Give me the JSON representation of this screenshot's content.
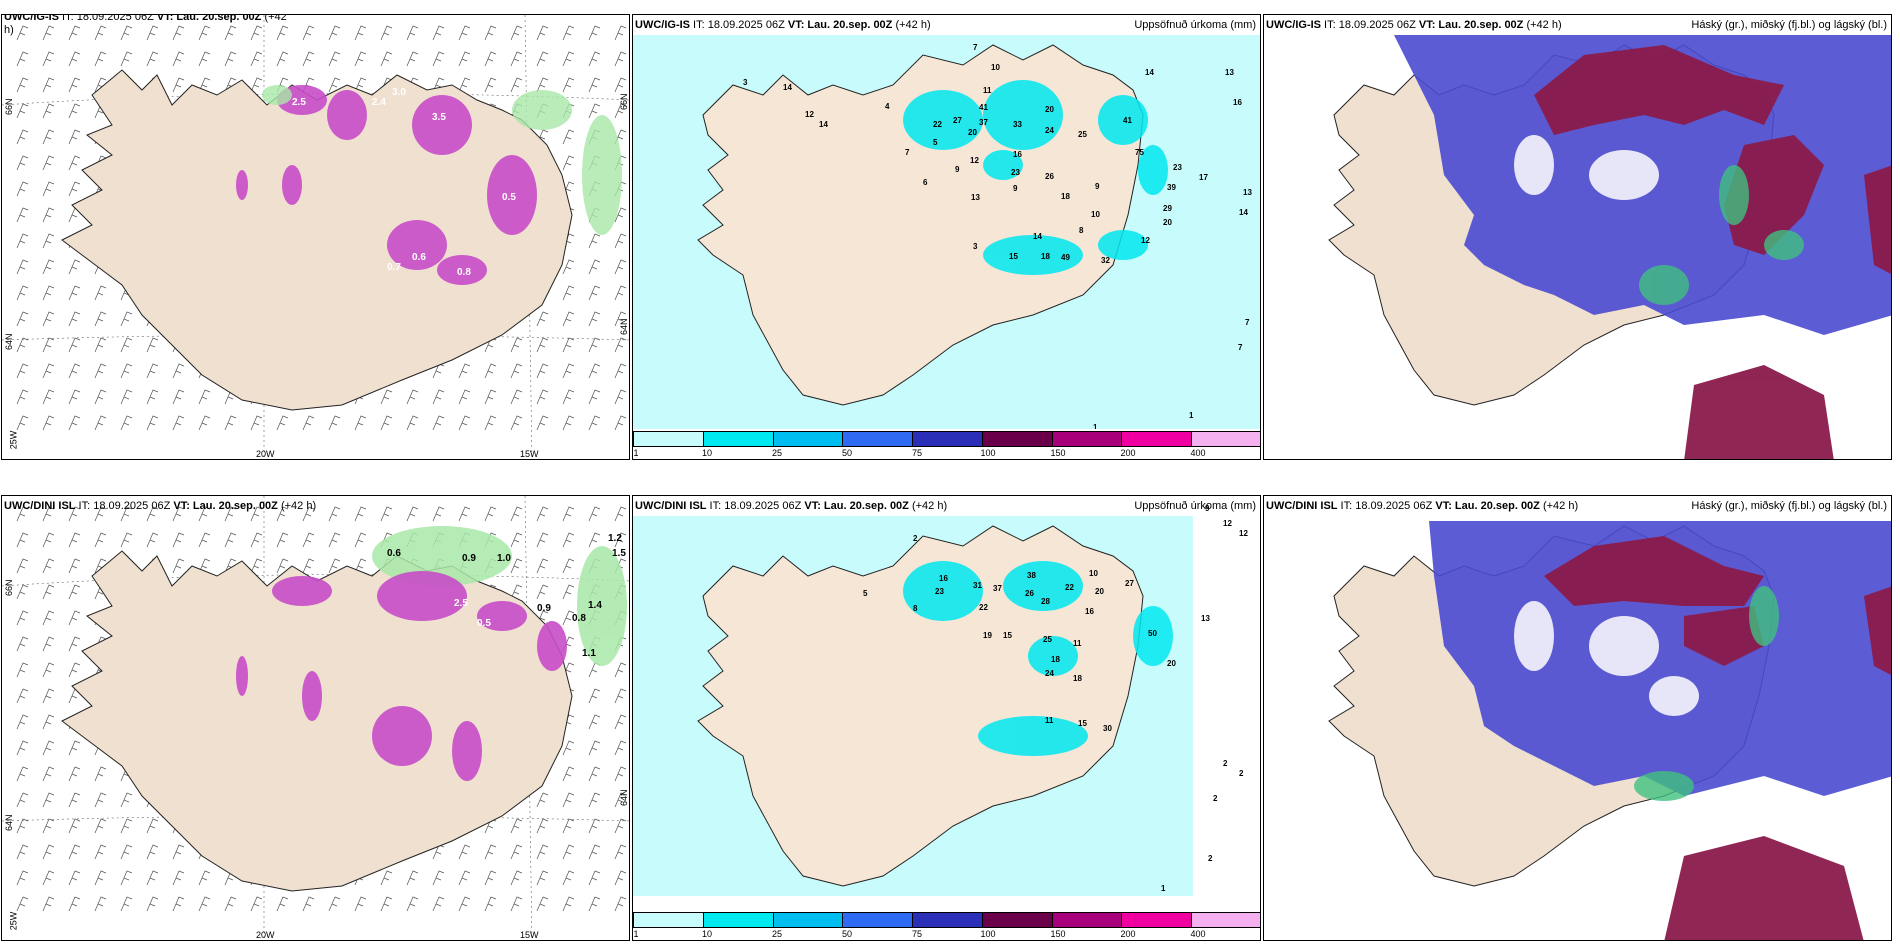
{
  "rows": [
    {
      "model": "UWC/IG-IS",
      "left_header": {
        "prefix": "UWC/IG-IS",
        "it": " IT: 18.09.2025 06Z ",
        "vt": "VT: Lau. 20.sep. 00Z",
        "lead": " (+42",
        "lead2": "h)"
      },
      "it": " IT: 18.09.2025 06Z ",
      "vt": "VT: Lau. 20.sep. 00Z",
      "lead": " (+42 h)"
    },
    {
      "model": "UWC/DINI ISL",
      "left_header": {
        "prefix": "UWC/DINI ISL",
        "it": " IT: 18.09.2025 06Z ",
        "vt": "VT: Lau. 20.sep. 00Z",
        "lead": " (+42 h)",
        "lead2": ""
      },
      "it": " IT: 18.09.2025 06Z ",
      "vt": "VT: Lau. 20.sep. 00Z",
      "lead": " (+42 h)"
    }
  ],
  "precip_title": "Uppsöfnuð úrkoma (mm)",
  "cloud_title": "Háský (gr.), miðský (fj.bl.) og lágský (bl.)",
  "legend": {
    "colors": [
      "#c8fbfb",
      "#00e8f0",
      "#00bff0",
      "#2f6bf2",
      "#2b2fb8",
      "#6a004a",
      "#a8007a",
      "#f000a0",
      "#f5b0f0"
    ],
    "ticks": [
      "1",
      "10",
      "25",
      "50",
      "75",
      "100",
      "150",
      "200",
      "400"
    ]
  },
  "axes": {
    "lat_66": "66N",
    "lat_64": "64N",
    "lon_25": "25W",
    "lon_20": "20W",
    "lon_15": "15W"
  },
  "map_values": {
    "top_precip": [
      "3",
      "14",
      "12",
      "14",
      "4",
      "7",
      "10",
      "11",
      "41",
      "37",
      "33",
      "20",
      "24",
      "25",
      "41",
      "14",
      "13",
      "16",
      "22",
      "27",
      "20",
      "9",
      "12",
      "16",
      "23",
      "26",
      "9",
      "18",
      "10",
      "8",
      "14",
      "15",
      "18",
      "49",
      "32",
      "12",
      "75",
      "23",
      "39",
      "29",
      "20",
      "17",
      "13",
      "14",
      "5",
      "7",
      "6",
      "13",
      "9",
      "3",
      "7",
      "7",
      "1",
      "1"
    ],
    "bottom_precip": [
      "2",
      "8",
      "5",
      "16",
      "23",
      "31",
      "37",
      "38",
      "26",
      "28",
      "22",
      "20",
      "27",
      "22",
      "16",
      "10",
      "19",
      "15",
      "25",
      "18",
      "24",
      "11",
      "18",
      "11",
      "30",
      "15",
      "50",
      "20",
      "13",
      "9",
      "12",
      "12",
      "2",
      "2",
      "2",
      "2",
      "1"
    ],
    "top_snow": [
      "2.5",
      "2.4",
      "3.0",
      "3.5",
      "0.6",
      "0.7",
      "0.8",
      "0.5"
    ],
    "bottom_snow": [
      "0.6",
      "0.9",
      "1.0",
      "1.2",
      "1.5",
      "2.5",
      "1.4",
      "0.8",
      "1.1",
      "0.5",
      "0.9"
    ]
  }
}
